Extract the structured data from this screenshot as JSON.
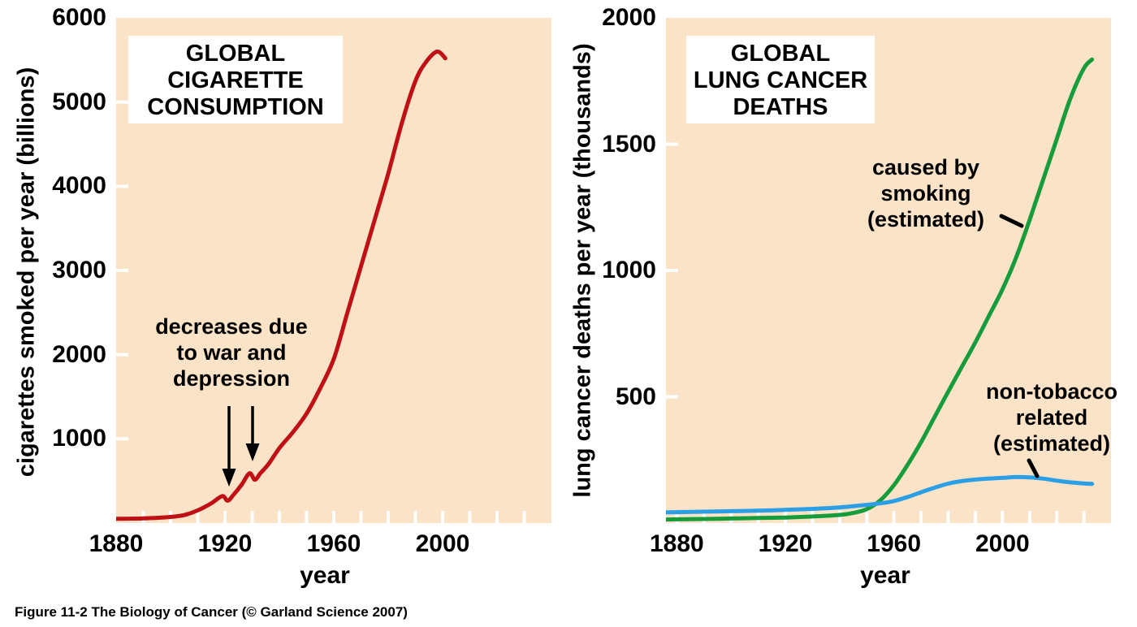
{
  "caption": "Figure 11-2  The Biology of Cancer (© Garland Science 2007)",
  "colors": {
    "plot_background": "#fbe3c7",
    "consumption_line": "#bf1016",
    "smoking_deaths_line": "#169c3b",
    "non_tobacco_line": "#2b9fe6",
    "tick_marks": "#ffffff",
    "text": "#000000",
    "title_box_background": "#ffffff"
  },
  "charts": [
    {
      "title_lines": [
        "GLOBAL",
        "CIGARETTE",
        "CONSUMPTION"
      ],
      "y_axis_label": "cigarettes smoked per year (billions)",
      "x_axis_label": "year",
      "annotation_lines": [
        "decreases due",
        "to war and",
        "depression"
      ]
    },
    {
      "title_lines": [
        "GLOBAL",
        "LUNG CANCER",
        "DEATHS"
      ],
      "y_axis_label": "lung cancer deaths per year (thousands)",
      "x_axis_label": "year",
      "annotation_smoking_lines": [
        "caused by",
        "smoking",
        "(estimated)"
      ],
      "annotation_non_tobacco_lines": [
        "non-tobacco",
        "related",
        "(estimated)"
      ]
    }
  ],
  "chart_data": [
    {
      "type": "line",
      "title": "GLOBAL CIGARETTE CONSUMPTION",
      "xlabel": "year",
      "ylabel": "cigarettes smoked per year (billions)",
      "xlim": [
        1880,
        2040
      ],
      "ylim": [
        0,
        6000
      ],
      "x_major_ticks": [
        1880,
        1920,
        1960,
        2000
      ],
      "x_minor_tick_step": 10,
      "y_major_ticks": [
        6000,
        5000,
        4000,
        3000,
        2000,
        1000
      ],
      "grid": false,
      "legend_position": "none",
      "series": [
        {
          "name": "global cigarette consumption",
          "color_key": "consumption_line",
          "x": [
            1880,
            1890,
            1900,
            1905,
            1910,
            1915,
            1919,
            1921,
            1923,
            1926,
            1929,
            1931,
            1933,
            1936,
            1940,
            1945,
            1950,
            1955,
            1960,
            1965,
            1970,
            1975,
            1980,
            1985,
            1990,
            1994,
            1998,
            2001
          ],
          "y": [
            50,
            55,
            72,
            95,
            150,
            235,
            320,
            265,
            330,
            450,
            590,
            515,
            590,
            700,
            890,
            1080,
            1300,
            1600,
            1950,
            2500,
            3050,
            3600,
            4150,
            4750,
            5250,
            5480,
            5600,
            5520
          ]
        }
      ],
      "annotations": [
        {
          "text": "decreases due to war and depression",
          "points_to_years": [
            1921,
            1931
          ]
        }
      ]
    },
    {
      "type": "line",
      "title": "GLOBAL LUNG CANCER DEATHS",
      "xlabel": "year",
      "ylabel": "lung cancer deaths per year (thousands)",
      "xlim": [
        1876,
        2040
      ],
      "ylim": [
        0,
        2000
      ],
      "x_major_ticks": [
        1880,
        1920,
        1960,
        2000
      ],
      "x_minor_tick_step": 10,
      "y_major_ticks": [
        2000,
        1500,
        1000,
        500
      ],
      "grid": false,
      "legend_position": "inline-labels",
      "series": [
        {
          "name": "caused by smoking (estimated)",
          "color_key": "smoking_deaths_line",
          "x": [
            1876,
            1890,
            1900,
            1910,
            1920,
            1930,
            1940,
            1945,
            1950,
            1955,
            1960,
            1965,
            1970,
            1975,
            1980,
            1985,
            1990,
            1995,
            2000,
            2005,
            2010,
            2015,
            2020,
            2025,
            2030,
            2033
          ],
          "y": [
            14,
            16,
            18,
            20,
            22,
            26,
            32,
            40,
            55,
            90,
            150,
            230,
            320,
            420,
            520,
            618,
            715,
            820,
            925,
            1050,
            1200,
            1360,
            1520,
            1680,
            1800,
            1835
          ]
        },
        {
          "name": "non-tobacco related (estimated)",
          "color_key": "non_tobacco_line",
          "x": [
            1876,
            1890,
            1900,
            1910,
            1920,
            1930,
            1940,
            1950,
            1955,
            1960,
            1965,
            1970,
            1975,
            1980,
            1985,
            1990,
            1995,
            2000,
            2005,
            2010,
            2015,
            2020,
            2025,
            2030,
            2033
          ],
          "y": [
            42,
            45,
            47,
            49,
            52,
            56,
            62,
            72,
            78,
            87,
            103,
            122,
            140,
            156,
            166,
            172,
            176,
            179,
            182,
            181,
            176,
            168,
            161,
            157,
            155
          ]
        }
      ]
    }
  ]
}
